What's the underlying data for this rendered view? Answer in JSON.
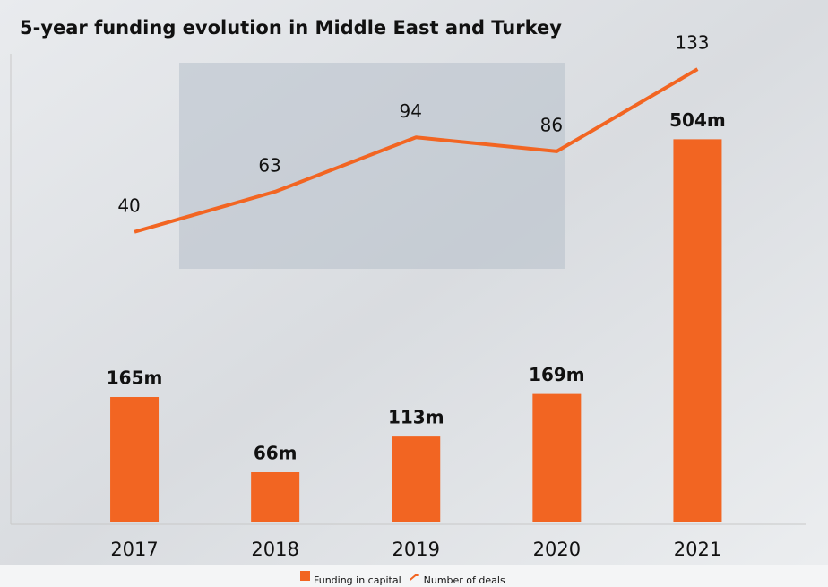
{
  "chart_data": {
    "type": "bar",
    "title": "5-year funding evolution in Middle East and Turkey",
    "categories": [
      "2017",
      "2018",
      "2019",
      "2020",
      "2021"
    ],
    "series": [
      {
        "name": "Funding in capital",
        "type": "bar",
        "color": "#f26522",
        "values": [
          165,
          66,
          113,
          169,
          504
        ],
        "value_labels": [
          "165m",
          "66m",
          "113m",
          "169m",
          "504m"
        ]
      },
      {
        "name": "Number of deals",
        "type": "line",
        "axis": "y2",
        "color": "#f26522",
        "values": [
          40,
          63,
          94,
          86,
          133
        ]
      }
    ],
    "ylim": [
      0,
      640
    ],
    "y2lim": [
      -126,
      152
    ],
    "grid": false
  }
}
